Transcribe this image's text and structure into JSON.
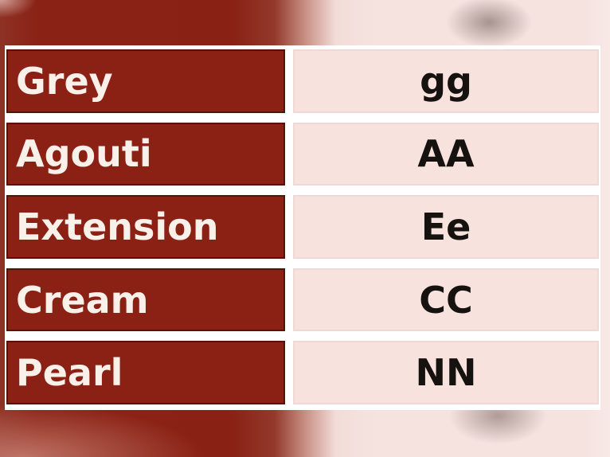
{
  "table": {
    "rows": [
      {
        "trait": "Grey",
        "genotype": "gg"
      },
      {
        "trait": "Agouti",
        "genotype": "AA"
      },
      {
        "trait": "Extension",
        "genotype": "Ee"
      },
      {
        "trait": "Cream",
        "genotype": "CC"
      },
      {
        "trait": "Pearl",
        "genotype": "NN"
      }
    ]
  },
  "colors": {
    "trait_cell_bg": "#8b2014",
    "trait_cell_border": "#5a1006",
    "trait_text": "#f9f1e9",
    "genotype_cell_bg": "#f8e2de",
    "genotype_cell_border": "#f0d9d4",
    "genotype_text": "#161210",
    "backdrop_maroon": "#892114",
    "backdrop_pink": "#f6e3e0",
    "photo_background": "#ffffff"
  }
}
